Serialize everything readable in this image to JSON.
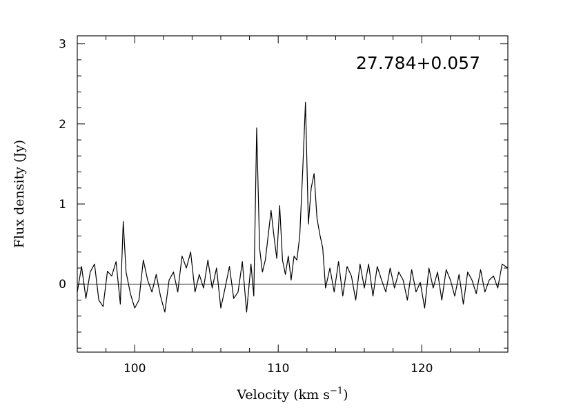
{
  "chart_data": {
    "type": "line",
    "annotation": "27.784+0.057",
    "xlabel_main": "Velocity (km s",
    "xlabel_exp": "−1",
    "xlabel_close": ")",
    "ylabel": "Flux density (Jy)",
    "xlim": [
      96,
      126
    ],
    "ylim": [
      -0.85,
      3.1
    ],
    "xticks_major": [
      100,
      110,
      120
    ],
    "xtick_labels": [
      "100",
      "110",
      "120"
    ],
    "xtick_minor_step": 2,
    "yticks_major": [
      0,
      1,
      2,
      3
    ],
    "ytick_labels": [
      "0",
      "1",
      "2",
      "3"
    ],
    "ytick_minor_step": 0.2,
    "grid": false,
    "series": [
      {
        "x": [
          96.0,
          96.3,
          96.6,
          96.9,
          97.2,
          97.5,
          97.8,
          98.1,
          98.4,
          98.7,
          99.0,
          99.2,
          99.4,
          99.7,
          100.0,
          100.3,
          100.6,
          100.9,
          101.2,
          101.5,
          101.8,
          102.1,
          102.4,
          102.7,
          103.0,
          103.3,
          103.6,
          103.9,
          104.2,
          104.5,
          104.8,
          105.1,
          105.4,
          105.7,
          106.0,
          106.3,
          106.6,
          106.9,
          107.2,
          107.5,
          107.8,
          108.1,
          108.3,
          108.5,
          108.7,
          108.9,
          109.1,
          109.3,
          109.5,
          109.7,
          109.9,
          110.1,
          110.3,
          110.5,
          110.7,
          110.9,
          111.1,
          111.3,
          111.5,
          111.7,
          111.9,
          112.1,
          112.3,
          112.5,
          112.7,
          112.9,
          113.1,
          113.3,
          113.6,
          113.9,
          114.2,
          114.5,
          114.8,
          115.1,
          115.4,
          115.7,
          116.0,
          116.3,
          116.6,
          116.9,
          117.2,
          117.5,
          117.8,
          118.1,
          118.4,
          118.7,
          119.0,
          119.3,
          119.6,
          119.9,
          120.2,
          120.5,
          120.8,
          121.1,
          121.4,
          121.7,
          122.0,
          122.3,
          122.6,
          122.9,
          123.2,
          123.5,
          123.8,
          124.1,
          124.4,
          124.7,
          125.0,
          125.3,
          125.6,
          126.0
        ],
        "y": [
          -0.1,
          0.22,
          -0.18,
          0.15,
          0.25,
          -0.2,
          -0.28,
          0.16,
          0.1,
          0.28,
          -0.25,
          0.78,
          0.15,
          -0.12,
          -0.3,
          -0.2,
          0.3,
          0.05,
          -0.1,
          0.12,
          -0.15,
          -0.35,
          0.05,
          0.15,
          -0.1,
          0.35,
          0.2,
          0.4,
          -0.1,
          0.12,
          -0.05,
          0.3,
          -0.05,
          0.2,
          -0.3,
          -0.05,
          0.22,
          -0.18,
          -0.1,
          0.28,
          -0.35,
          0.25,
          -0.15,
          1.95,
          0.45,
          0.15,
          0.3,
          0.6,
          0.92,
          0.6,
          0.32,
          0.98,
          0.3,
          0.12,
          0.35,
          0.05,
          0.35,
          0.3,
          0.6,
          1.4,
          2.27,
          0.75,
          1.2,
          1.38,
          0.82,
          0.62,
          0.45,
          -0.05,
          0.2,
          -0.1,
          0.28,
          -0.15,
          0.22,
          0.1,
          -0.2,
          0.25,
          -0.05,
          0.25,
          -0.15,
          0.22,
          0.05,
          -0.1,
          0.2,
          -0.05,
          0.15,
          0.05,
          -0.2,
          0.18,
          -0.1,
          0.02,
          -0.3,
          0.2,
          -0.05,
          0.15,
          -0.2,
          0.18,
          0.05,
          -0.15,
          0.12,
          -0.25,
          0.15,
          0.05,
          -0.12,
          0.18,
          -0.1,
          0.05,
          0.1,
          -0.05,
          0.25,
          0.2
        ]
      }
    ]
  }
}
